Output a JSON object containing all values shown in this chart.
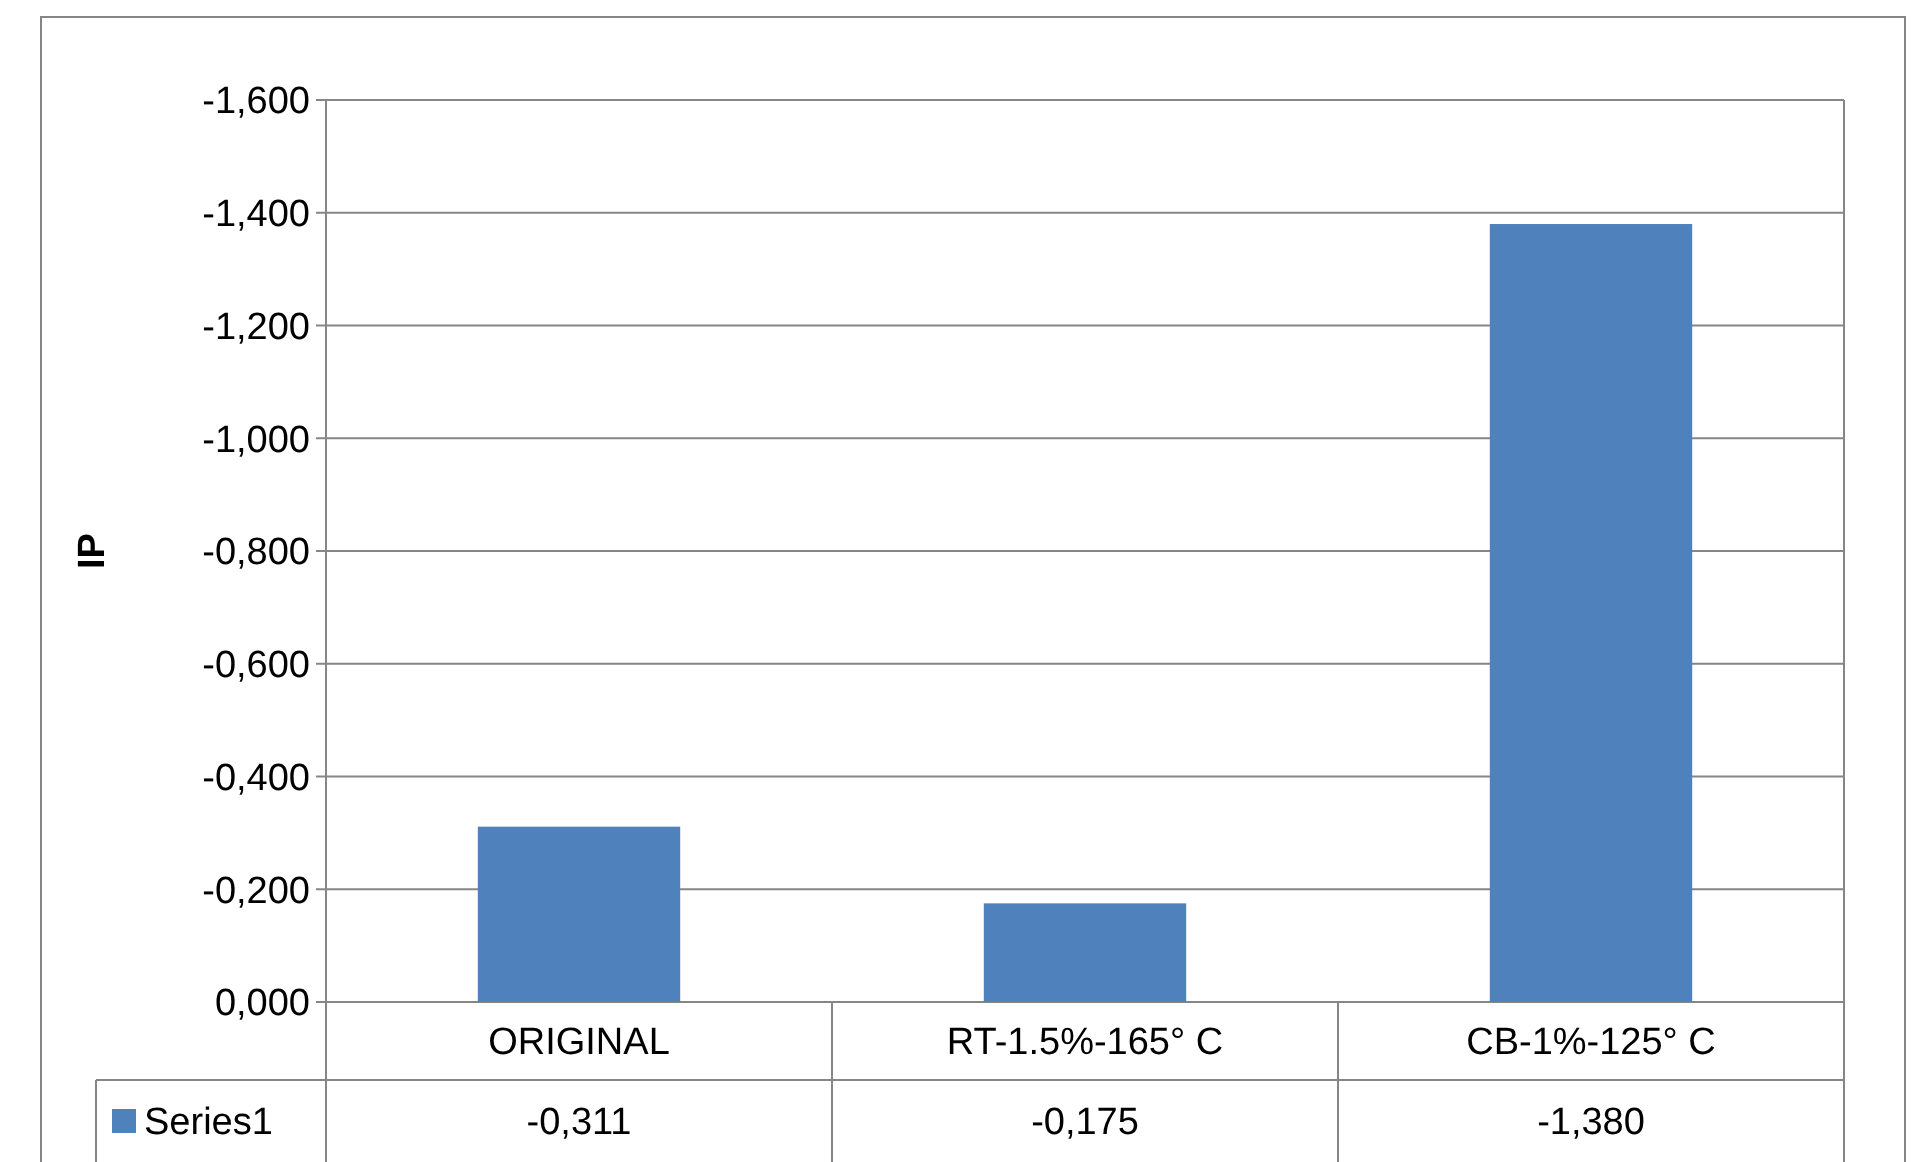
{
  "chart_data": {
    "type": "bar",
    "ylabel": "IP",
    "categories": [
      "ORIGINAL",
      "RT-1.5%-165° C",
      "CB-1%-125° C"
    ],
    "series": [
      {
        "name": "Series1",
        "color": "#4f81bd",
        "values": [
          -0.311,
          -0.175,
          -1.38
        ],
        "value_labels": [
          "-0,311",
          "-0,175",
          "-1,380"
        ]
      }
    ],
    "ylim": [
      0,
      -1.6
    ],
    "yticks": [
      {
        "value": 0,
        "label": "0,000"
      },
      {
        "value": -0.2,
        "label": "-0,200"
      },
      {
        "value": -0.4,
        "label": "-0,400"
      },
      {
        "value": -0.6,
        "label": "-0,600"
      },
      {
        "value": -0.8,
        "label": "-0,800"
      },
      {
        "value": -1.0,
        "label": "-1,000"
      },
      {
        "value": -1.2,
        "label": "-1,200"
      },
      {
        "value": -1.4,
        "label": "-1,400"
      },
      {
        "value": -1.6,
        "label": "-1,600"
      }
    ],
    "grid": "y",
    "legend": "bottom"
  }
}
